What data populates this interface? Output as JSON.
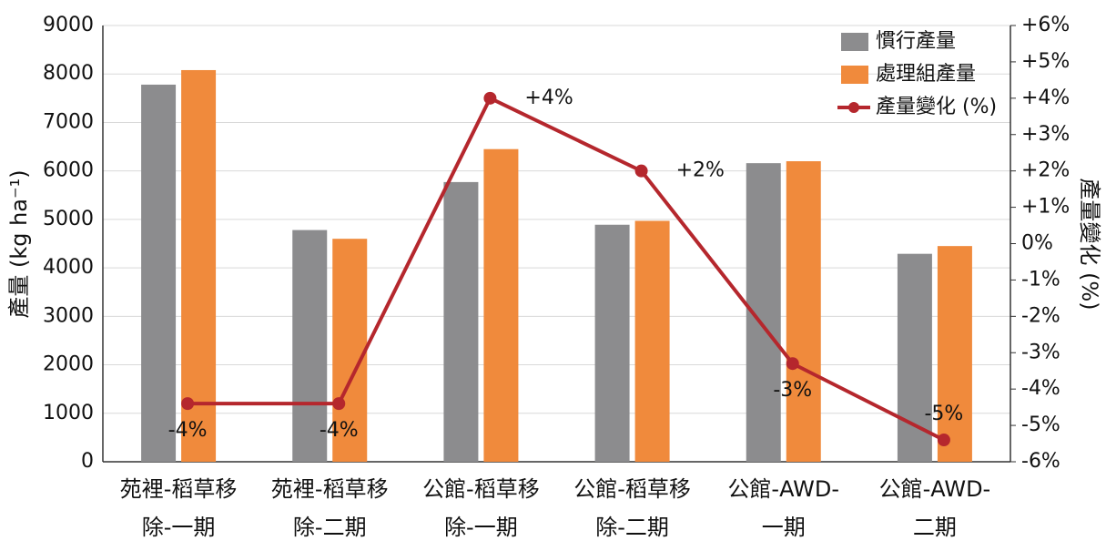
{
  "chart_data": {
    "type": "bar",
    "categories": [
      "苑裡-稻草移除-一期",
      "苑裡-稻草移除-二期",
      "公館-稻草移除-一期",
      "公館-稻草移除-二期",
      "公館-AWD-一期",
      "公館-AWD-二期"
    ],
    "series": [
      {
        "name": "慣行產量",
        "color": "#8c8c8e",
        "values": [
          7780,
          4780,
          5770,
          4890,
          6160,
          4290
        ]
      },
      {
        "name": "處理組產量",
        "color": "#f08a3c",
        "values": [
          8080,
          4600,
          6450,
          4970,
          6200,
          4450
        ]
      },
      {
        "name": "產量變化 (%)",
        "type": "line",
        "axis": "y2",
        "color": "#b5272d",
        "values": [
          -4.4,
          -4.4,
          4,
          2,
          -3.3,
          -5.4
        ],
        "value_labels": [
          "-4%",
          "-4%",
          "+4%",
          "+2%",
          "-3%",
          "-5%"
        ]
      }
    ],
    "ylabel": "產量 (kg ha⁻¹)",
    "y2label": "產量變化 (%)",
    "ylim": [
      0,
      9000
    ],
    "yticks": [
      0,
      1000,
      2000,
      3000,
      4000,
      5000,
      6000,
      7000,
      8000,
      9000
    ],
    "y2lim": [
      -6,
      6
    ],
    "y2ticks": [
      {
        "value": -6,
        "label": "-6%"
      },
      {
        "value": -5,
        "label": "-5%"
      },
      {
        "value": -4,
        "label": "-4%"
      },
      {
        "value": -3,
        "label": "-3%"
      },
      {
        "value": -2,
        "label": "-2%"
      },
      {
        "value": -1,
        "label": "-1%"
      },
      {
        "value": 0,
        "label": "0%"
      },
      {
        "value": 1,
        "label": "+1%"
      },
      {
        "value": 2,
        "label": "+2%"
      },
      {
        "value": 3,
        "label": "+3%"
      },
      {
        "value": 4,
        "label": "+4%"
      },
      {
        "value": 5,
        "label": "+5%"
      },
      {
        "value": 6,
        "label": "+6%"
      }
    ],
    "grid": true,
    "legend": "upper right"
  }
}
